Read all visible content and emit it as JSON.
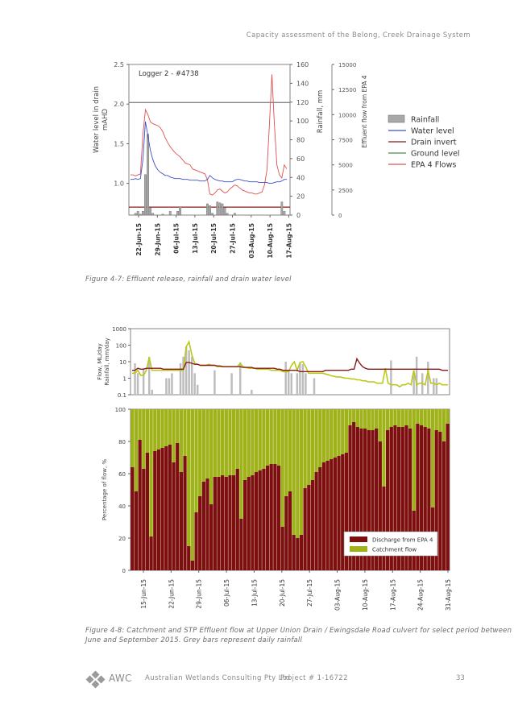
{
  "header": {
    "title": "Capacity assessment of the Belong,  Creek Drainage System"
  },
  "figure1": {
    "caption": "Figure 4-7: Effluent release, rainfall and drain water level",
    "chart_data": {
      "type": "line",
      "title": "Logger 2 - #4738",
      "ylabel_left": "Water level in drain mAHD",
      "ylabel_mid": "Rainfall, mm",
      "ylabel_right": "Effluent flow from EPA 4",
      "ylim_left": [
        0.6,
        2.5
      ],
      "ylim_mid": [
        0,
        160
      ],
      "ylim_right": [
        0,
        15000
      ],
      "left_ticks": [
        "2.5",
        "2.0",
        "1.5",
        "1.0"
      ],
      "mid_ticks": [
        "160",
        "140",
        "120",
        "100",
        "80",
        "60",
        "40",
        "20",
        "0"
      ],
      "right_ticks": [
        "15000",
        "12500",
        "10000",
        "7500",
        "5000",
        "2500",
        "0"
      ],
      "x_ticks": [
        "22-Jun-15",
        "29-Jun-15",
        "06-Jul-15",
        "13-Jul-15",
        "20-Jul-15",
        "27-Jul-15",
        "03-Aug-15",
        "10-Aug-15",
        "17-Aug-15"
      ],
      "legend": [
        "Rainfall",
        "Water level",
        "Drain invert",
        "Ground level",
        "EPA 4 Flows"
      ],
      "colors": {
        "rainfall": "#999999",
        "water_level": "#3b4fc9",
        "drain_invert": "#8b1a1a",
        "ground_level": "#4b8c4b",
        "epa4": "#e05050"
      },
      "ground_level": 2.02,
      "drain_invert": 0.7,
      "rainfall_days": [
        0,
        1,
        2,
        3,
        4,
        5,
        6,
        7,
        8,
        9,
        10,
        11,
        12,
        13,
        14,
        15,
        16,
        17,
        18,
        19,
        20,
        21,
        22,
        23,
        24,
        25,
        26,
        27,
        28,
        29,
        30,
        31,
        32,
        33,
        34,
        35,
        36,
        37,
        38,
        39,
        40,
        41,
        42,
        43,
        44,
        45,
        46,
        47,
        48,
        49,
        50,
        51,
        52,
        53,
        54,
        55,
        56,
        57,
        58,
        59,
        60,
        61,
        62,
        63
      ],
      "rainfall": [
        0,
        0,
        2,
        4,
        1,
        4,
        43,
        86,
        8,
        2,
        0,
        0,
        0,
        1,
        0,
        0,
        4,
        0,
        0,
        4,
        9,
        0,
        0,
        0,
        0,
        0,
        0,
        0,
        0,
        0,
        0,
        12,
        10,
        2,
        0,
        14,
        13,
        12,
        8,
        2,
        0,
        0,
        2,
        0,
        0,
        0,
        0,
        0,
        0,
        0,
        0,
        0,
        0,
        0,
        0,
        0,
        0,
        0,
        0,
        0,
        0,
        14,
        4,
        0
      ],
      "water_level": [
        1.05,
        1.05,
        1.06,
        1.05,
        1.06,
        1.3,
        1.78,
        1.6,
        1.42,
        1.3,
        1.22,
        1.17,
        1.14,
        1.12,
        1.1,
        1.1,
        1.08,
        1.07,
        1.06,
        1.06,
        1.06,
        1.05,
        1.05,
        1.05,
        1.04,
        1.04,
        1.04,
        1.04,
        1.03,
        1.03,
        1.03,
        1.05,
        1.1,
        1.07,
        1.05,
        1.04,
        1.03,
        1.03,
        1.02,
        1.02,
        1.02,
        1.02,
        1.04,
        1.05,
        1.05,
        1.04,
        1.03,
        1.03,
        1.02,
        1.02,
        1.02,
        1.02,
        1.01,
        1.01,
        1.01,
        1.01,
        1.0,
        1.0,
        1.01,
        1.02,
        1.02,
        1.03,
        1.05,
        1.05
      ],
      "epa4_flow": [
        4000,
        4000,
        3900,
        4000,
        4100,
        8000,
        10500,
        10000,
        9300,
        9100,
        9000,
        8900,
        8700,
        8300,
        7700,
        7200,
        6800,
        6500,
        6200,
        6000,
        5800,
        5500,
        5200,
        5100,
        5000,
        4600,
        4500,
        4400,
        4300,
        4200,
        4100,
        3500,
        2100,
        2000,
        2200,
        2500,
        2600,
        2400,
        2200,
        2300,
        2600,
        2800,
        3000,
        2900,
        2700,
        2500,
        2400,
        2300,
        2200,
        2200,
        2100,
        2100,
        2200,
        2300,
        3000,
        4500,
        9000,
        14000,
        9000,
        5000,
        4000,
        3700,
        5000,
        4600
      ]
    }
  },
  "figure2": {
    "caption_lines": [
      "Figure 4-8: Catchment and STP Effluent flow at Upper Union Drain / Ewingsdale Road culvert for select period between",
      "June and September 2015. Grey bars represent daily rainfall"
    ],
    "top_chart": {
      "type": "line",
      "ylabel": "Flow, ML/day Rainfall, mm/day",
      "ylabel_lines": [
        "Flow, ML/day",
        "Rainfall, mm/day"
      ],
      "log_scale": true,
      "ylim": [
        0.1,
        1000
      ],
      "y_ticks": [
        "1000",
        "100",
        "10",
        "1",
        "0.1"
      ],
      "colors": {
        "rainfall": "#bdbdbd",
        "discharge": "#8b1a1a",
        "catchment": "#bcc81a"
      },
      "days": [
        0,
        1,
        2,
        3,
        4,
        5,
        6,
        7,
        8,
        9,
        10,
        11,
        12,
        13,
        14,
        15,
        16,
        17,
        18,
        19,
        20,
        21,
        22,
        23,
        24,
        25,
        26,
        27,
        28,
        29,
        30,
        31,
        32,
        33,
        34,
        35,
        36,
        37,
        38,
        39,
        40,
        41,
        42,
        43,
        44,
        45,
        46,
        47,
        48,
        49,
        50,
        51,
        52,
        53,
        54,
        55,
        56,
        57,
        58,
        59,
        60,
        61,
        62,
        63,
        64,
        65,
        66,
        67,
        68,
        69,
        70,
        71,
        72,
        73,
        74,
        75,
        76,
        77,
        78,
        79,
        80,
        81,
        82,
        83,
        84,
        85,
        86,
        87,
        88,
        89,
        90,
        91,
        92,
        93,
        94,
        95,
        96,
        97,
        98,
        99,
        100,
        101,
        102,
        103,
        104,
        105,
        106,
        107,
        108,
        109,
        110,
        111
      ],
      "rainfall": [
        0,
        8,
        2,
        0,
        4,
        0,
        20,
        0.2,
        0,
        0,
        0,
        0,
        1,
        1,
        2,
        0,
        0,
        8,
        20,
        80,
        50,
        20,
        2,
        0.4,
        0,
        0,
        0,
        0,
        0,
        3,
        0,
        0,
        0,
        0,
        0,
        2,
        0,
        0,
        9,
        0,
        0,
        0,
        0.2,
        0,
        0,
        0,
        0,
        0,
        0,
        0,
        0,
        0,
        0,
        0,
        10,
        3,
        2,
        0,
        2,
        8,
        7,
        2,
        0,
        0,
        1,
        0,
        0,
        0,
        0,
        0,
        0,
        0,
        0,
        0,
        0,
        0,
        0,
        0,
        0,
        0,
        0,
        0,
        0,
        0,
        0,
        0,
        0,
        0,
        0,
        0,
        0,
        12,
        0,
        0,
        0,
        0,
        0,
        0,
        0,
        2,
        20,
        0,
        2,
        0,
        10,
        0,
        1,
        1,
        0,
        0,
        0,
        0
      ],
      "discharge": [
        3,
        3,
        4,
        3.5,
        3.5,
        4,
        4,
        4,
        4,
        4,
        4,
        3.5,
        3.5,
        3.5,
        3.5,
        3.5,
        3.5,
        3.5,
        3.5,
        9,
        9,
        8,
        7,
        7,
        6,
        6,
        6,
        6,
        6,
        6,
        5.5,
        5.5,
        5,
        5,
        5,
        5,
        5,
        5,
        5,
        4.5,
        4.5,
        4.5,
        4.5,
        4,
        4,
        4,
        4,
        4,
        4,
        4,
        4,
        3.5,
        3.5,
        3,
        3,
        3,
        3,
        3,
        3,
        2.5,
        2.5,
        2.5,
        2.5,
        2.5,
        2.5,
        2.5,
        2.5,
        2.5,
        3,
        3,
        3,
        3,
        3,
        3,
        3,
        3,
        3,
        3.5,
        3.5,
        15,
        8,
        5,
        4,
        3.5,
        3.5,
        3.5,
        3.5,
        3.5,
        3.5,
        3.5,
        3.5,
        3.5,
        3.5,
        3.5,
        3.5,
        3.5,
        3.5,
        3.5,
        3.5,
        3.5,
        3.5,
        3.5,
        3.5,
        3.5,
        3.5,
        3.5,
        3.5,
        3.5,
        3.5,
        3,
        3,
        3
      ],
      "catchment": [
        2,
        2,
        3,
        1.5,
        1.5,
        3,
        18,
        3,
        3,
        3,
        3,
        3,
        3,
        3,
        3,
        3,
        3,
        3,
        3,
        80,
        160,
        25,
        8,
        7,
        6,
        6,
        6,
        7,
        6,
        6,
        5,
        5,
        5,
        5,
        5,
        5,
        5,
        5,
        8,
        5,
        4.5,
        4,
        4,
        4,
        3.5,
        3.5,
        3.5,
        3.5,
        3.5,
        3,
        3,
        3,
        3,
        2.5,
        2.5,
        2.5,
        6,
        10,
        3,
        9,
        10,
        5,
        2,
        2,
        2,
        2,
        2,
        2,
        1.8,
        1.6,
        1.4,
        1.3,
        1.2,
        1.2,
        1.1,
        1,
        1,
        0.9,
        0.9,
        0.8,
        0.8,
        0.7,
        0.7,
        0.6,
        0.6,
        0.6,
        0.5,
        0.5,
        0.5,
        4,
        0.5,
        0.4,
        0.4,
        0.4,
        0.3,
        0.4,
        0.4,
        0.5,
        0.4,
        3,
        0.4,
        0.5,
        0.5,
        0.4,
        3,
        0.5,
        0.5,
        0.4,
        0.5,
        0.4,
        0.4,
        0.4
      ]
    },
    "bottom_chart": {
      "type": "bar",
      "stacked": true,
      "ylabel": "Percentage of flow, %",
      "ylim": [
        0,
        100
      ],
      "y_ticks": [
        "100",
        "80",
        "60",
        "40",
        "20",
        "0"
      ],
      "x_ticks": [
        "15-Jun-15",
        "22-Jun-15",
        "29-Jun-15",
        "06-Jul-15",
        "13-Jul-15",
        "20-Jul-15",
        "27-Jul-15",
        "03-Aug-15",
        "10-Aug-15",
        "17-Aug-15",
        "24-Aug-15",
        "31-Aug-15"
      ],
      "legend": [
        "Discharge from EPA 4",
        "Catchment flow"
      ],
      "colors": {
        "discharge": "#7d0f0f",
        "catchment": "#9fb21a"
      },
      "discharge_pct": [
        64,
        49,
        81,
        63,
        73,
        21,
        74,
        75,
        76,
        77,
        78,
        67,
        79,
        61,
        71,
        15,
        6,
        36,
        46,
        55,
        57,
        41,
        58,
        58,
        59,
        58,
        59,
        59,
        63,
        32,
        56,
        58,
        59,
        61,
        62,
        63,
        65,
        66,
        66,
        65,
        27,
        46,
        49,
        22,
        20,
        22,
        51,
        53,
        56,
        61,
        64,
        67,
        68,
        69,
        70,
        71,
        72,
        73,
        90,
        92,
        89,
        88,
        88,
        87,
        87,
        88,
        80,
        52,
        87,
        89,
        90,
        89,
        89,
        90,
        88,
        37,
        91,
        90,
        89,
        88,
        39,
        87,
        86,
        80,
        91
      ]
    }
  },
  "footer": {
    "brand": "AWC",
    "company": "Australian Wetlands Consulting Pty Ltd",
    "project": "Project # 1-16722",
    "page": "33"
  }
}
